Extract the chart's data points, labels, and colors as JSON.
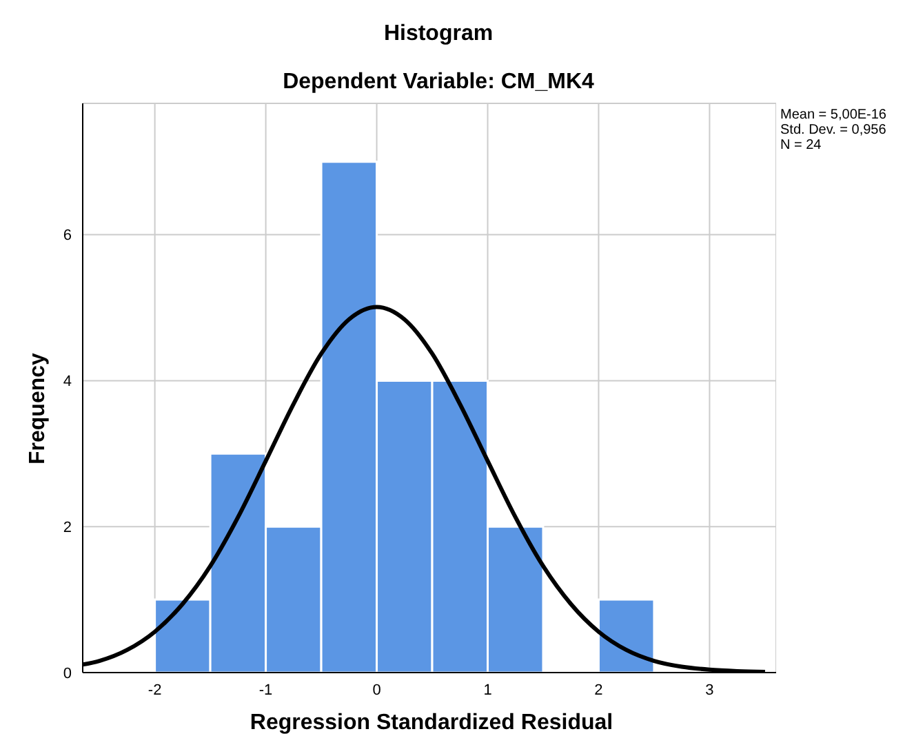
{
  "chart_data": {
    "type": "histogram",
    "title": "Histogram",
    "subtitle": "Dependent Variable: CM_MK4",
    "xlabel": "Regression Standardized Residual",
    "ylabel": "Frequency",
    "bins": [
      -2,
      -1.5,
      -1,
      -0.5,
      0,
      0.5,
      1,
      1.5,
      2,
      2.5
    ],
    "values": [
      1,
      3,
      2,
      7,
      4,
      4,
      2,
      0,
      1
    ],
    "color": "#5b96e4",
    "series": [
      {
        "type": "line",
        "color": "#000000",
        "x": [
          -2.65,
          -2.5,
          -2.25,
          -2,
          -1.75,
          -1.5,
          -1.25,
          -1,
          -0.75,
          -0.5,
          -0.25,
          0,
          0.25,
          0.5,
          0.75,
          1,
          1.25,
          1.5,
          1.75,
          2,
          2.25,
          2.5,
          2.75,
          3,
          3.25,
          3.5
        ],
        "values": [
          0.11,
          0.16,
          0.31,
          0.56,
          0.94,
          1.46,
          2.13,
          2.9,
          3.68,
          4.37,
          4.84,
          5.01,
          4.84,
          4.37,
          3.68,
          2.9,
          2.13,
          1.46,
          0.94,
          0.56,
          0.31,
          0.16,
          0.08,
          0.04,
          0.02,
          0.01
        ]
      }
    ],
    "xlim": [
      -2.65,
      3.6
    ],
    "xticks": [
      -2,
      -1,
      0,
      1,
      2,
      3
    ],
    "ylim": [
      0,
      7.8
    ],
    "yticks": [
      0,
      2,
      4,
      6
    ],
    "grid": true,
    "marker": "none",
    "annotations": [
      "Mean = 5,00E-16",
      "Std. Dev. = 0,956",
      "N = 24"
    ]
  }
}
